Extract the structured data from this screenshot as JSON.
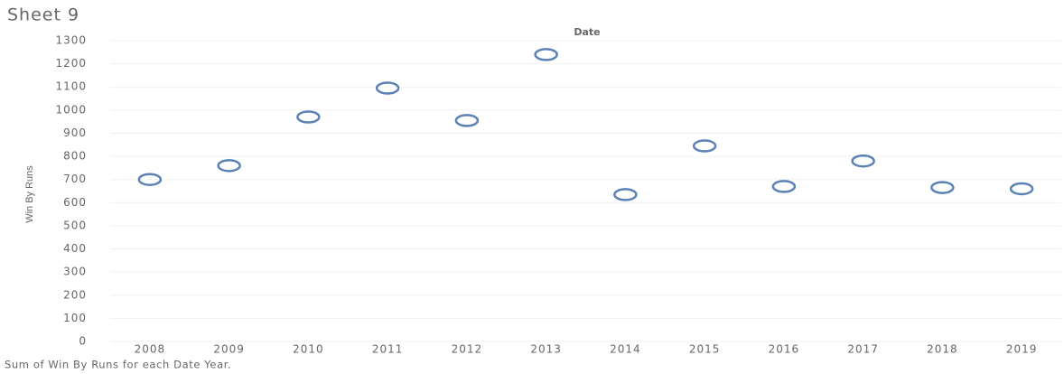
{
  "chart_data": {
    "type": "scatter",
    "title": "Sheet 9",
    "x_label": "Date",
    "y_label": "Win By Runs",
    "footnote": "Sum of Win By Runs for each Date Year.",
    "categories": [
      "2008",
      "2009",
      "2010",
      "2011",
      "2012",
      "2013",
      "2014",
      "2015",
      "2016",
      "2017",
      "2018",
      "2019"
    ],
    "values": [
      700,
      760,
      970,
      1095,
      955,
      1240,
      635,
      845,
      670,
      780,
      665,
      660
    ],
    "color": "#5b82b4",
    "ylim": [
      0,
      1300
    ],
    "yticks": [
      0,
      100,
      200,
      300,
      400,
      500,
      600,
      700,
      800,
      900,
      1000,
      1100,
      1200,
      1300
    ],
    "grid": true
  }
}
